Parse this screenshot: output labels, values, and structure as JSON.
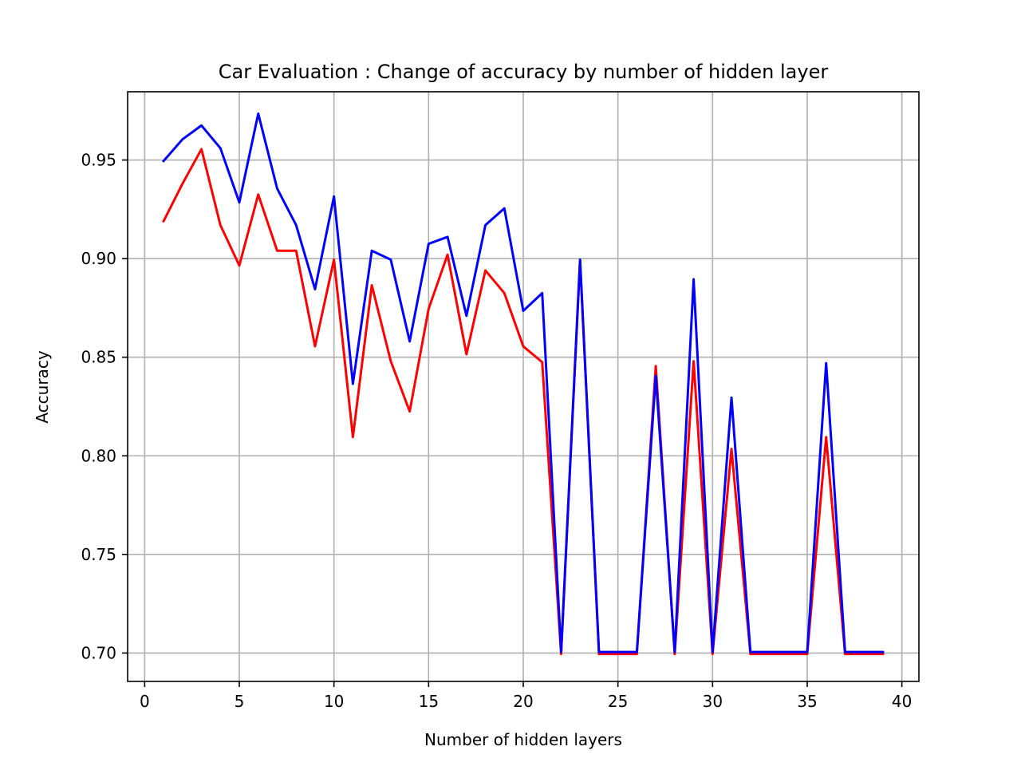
{
  "chart_data": {
    "type": "line",
    "title": "Car Evaluation : Change of accuracy by number of hidden layer",
    "xlabel": "Number of hidden layers",
    "ylabel": "Accuracy",
    "xlim": [
      -0.9,
      40.9
    ],
    "ylim": [
      0.6856,
      0.9846
    ],
    "x_ticks": [
      0,
      5,
      10,
      15,
      20,
      25,
      30,
      35,
      40
    ],
    "x_tick_labels": [
      "0",
      "5",
      "10",
      "15",
      "20",
      "25",
      "30",
      "35",
      "40"
    ],
    "y_ticks": [
      0.7,
      0.75,
      0.8,
      0.85,
      0.9,
      0.95
    ],
    "y_tick_labels": [
      "0.70",
      "0.75",
      "0.80",
      "0.85",
      "0.90",
      "0.95"
    ],
    "grid": true,
    "x": [
      1,
      2,
      3,
      4,
      5,
      6,
      7,
      8,
      9,
      10,
      11,
      12,
      13,
      14,
      15,
      16,
      17,
      18,
      19,
      20,
      21,
      22,
      23,
      24,
      25,
      26,
      27,
      28,
      29,
      30,
      31,
      32,
      33,
      34,
      35,
      36,
      37,
      38,
      39
    ],
    "series": [
      {
        "color": "#ff0000",
        "values": [
          0.919,
          0.938,
          0.9555,
          0.917,
          0.8965,
          0.9325,
          0.904,
          0.904,
          0.8555,
          0.8995,
          0.8095,
          0.8865,
          0.848,
          0.8225,
          0.8745,
          0.902,
          0.8515,
          0.894,
          0.8825,
          0.8555,
          0.8475,
          0.6995,
          0.899,
          0.6995,
          0.6995,
          0.6995,
          0.8455,
          0.6995,
          0.848,
          0.6995,
          0.8035,
          0.6995,
          0.6995,
          0.6995,
          0.6995,
          0.8095,
          0.6995,
          0.6995,
          0.6995
        ]
      },
      {
        "color": "#0000ff",
        "values": [
          0.9495,
          0.9605,
          0.9675,
          0.956,
          0.9285,
          0.9735,
          0.9355,
          0.917,
          0.8845,
          0.9315,
          0.8365,
          0.904,
          0.8995,
          0.858,
          0.9075,
          0.911,
          0.871,
          0.917,
          0.9255,
          0.8735,
          0.8825,
          0.7005,
          0.8995,
          0.7005,
          0.7005,
          0.7005,
          0.8405,
          0.7005,
          0.8895,
          0.7005,
          0.8295,
          0.7005,
          0.7005,
          0.7005,
          0.7005,
          0.847,
          0.7005,
          0.7005,
          0.7005
        ]
      }
    ]
  }
}
